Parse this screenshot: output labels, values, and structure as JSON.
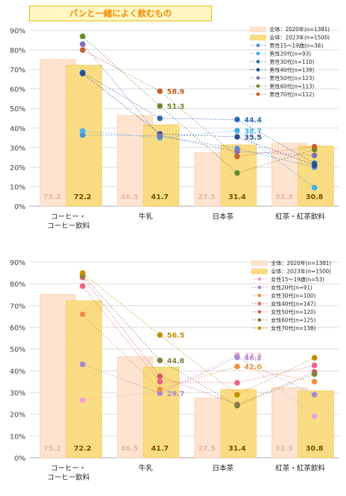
{
  "title": "パンと一緒によく飲むもの",
  "chart_data": [
    {
      "type": "bar",
      "categories": [
        "コーヒー・\nコーヒー飲料",
        "牛乳",
        "日本茶",
        "紅茶・紅茶飲料"
      ],
      "ylim": [
        0,
        90
      ],
      "yticks": [
        "0%",
        "10%",
        "20%",
        "30%",
        "40%",
        "50%",
        "60%",
        "70%",
        "80%",
        "90%"
      ],
      "bar_series": [
        {
          "name": "全体：2020年(n=1381)",
          "values": [
            75.2,
            46.5,
            27.5,
            32.3
          ],
          "labels": [
            "75.2",
            "46.5",
            "27.5",
            "32.3"
          ]
        },
        {
          "name": "全体：2023年(n=1500)",
          "values": [
            72.2,
            41.7,
            31.4,
            30.8
          ],
          "labels": [
            "72.2",
            "41.7",
            "31.4",
            "30.8"
          ]
        }
      ],
      "line_series": [
        {
          "name": "男性15～19歳(n=36)",
          "color": "#4a8fd8",
          "values": [
            36.5,
            36.0,
            29.5,
            20.0
          ]
        },
        {
          "name": "男性20代(n=93)",
          "color": "#41aef0",
          "values": [
            38.5,
            35.0,
            38.7,
            9.5
          ]
        },
        {
          "name": "男性30代(n=110)",
          "color": "#2a6ab8",
          "values": [
            68.5,
            45.0,
            44.4,
            22.0
          ]
        },
        {
          "name": "男性40代(n=139)",
          "color": "#2a4d99",
          "values": [
            68.0,
            37.0,
            35.5,
            21.0
          ]
        },
        {
          "name": "男性50代(n=123)",
          "color": "#8070b8",
          "values": [
            83.0,
            36.0,
            28.0,
            26.0
          ]
        },
        {
          "name": "男性60代(n=113)",
          "color": "#6b8a2a",
          "values": [
            87.0,
            51.3,
            17.0,
            29.0
          ]
        },
        {
          "name": "男性70代(n=112)",
          "color": "#c0652a",
          "values": [
            80.0,
            58.9,
            25.5,
            30.5
          ]
        }
      ],
      "line_labels": [
        {
          "text": "58.9",
          "cat": 1,
          "value": 58.9,
          "color": "#b85a1a"
        },
        {
          "text": "51.3",
          "cat": 1,
          "value": 51.3,
          "color": "#6b8a2a"
        },
        {
          "text": "44.4",
          "cat": 2,
          "value": 44.4,
          "color": "#2a6ab8"
        },
        {
          "text": "38.7",
          "cat": 2,
          "value": 38.7,
          "color": "#41aef0"
        },
        {
          "text": "35.5",
          "cat": 2,
          "value": 35.5,
          "color": "#2a4d99"
        }
      ]
    },
    {
      "type": "bar",
      "categories": [
        "コーヒー・\nコーヒー飲料",
        "牛乳",
        "日本茶",
        "紅茶・紅茶飲料"
      ],
      "ylim": [
        0,
        90
      ],
      "yticks": [
        "0%",
        "10%",
        "20%",
        "30%",
        "40%",
        "50%",
        "60%",
        "70%",
        "80%",
        "90%"
      ],
      "bar_series": [
        {
          "name": "全体：2020年(n=1381)",
          "values": [
            75.2,
            46.5,
            27.5,
            32.3
          ],
          "labels": [
            "75.2",
            "46.5",
            "27.5",
            "32.3"
          ]
        },
        {
          "name": "全体：2023年(n=1500)",
          "values": [
            72.2,
            41.7,
            31.4,
            30.8
          ],
          "labels": [
            "72.2",
            "41.7",
            "31.4",
            "30.8"
          ]
        }
      ],
      "line_series": [
        {
          "name": "女性15～19歳(n=53)",
          "color": "#f0a0d8",
          "values": [
            26.5,
            30.5,
            47.2,
            19.0
          ]
        },
        {
          "name": "女性20代(n=91)",
          "color": "#a88ad0",
          "values": [
            43.0,
            29.7,
            46.2,
            29.0
          ]
        },
        {
          "name": "女性30代(n=100)",
          "color": "#f09040",
          "values": [
            66.0,
            31.5,
            42.0,
            35.0
          ]
        },
        {
          "name": "女性40代(n=147)",
          "color": "#f06080",
          "values": [
            79.0,
            35.0,
            34.5,
            42.5
          ]
        },
        {
          "name": "女性50代(n=120)",
          "color": "#d06060",
          "values": [
            83.0,
            37.5,
            24.5,
            39.5
          ]
        },
        {
          "name": "女性60代(n=125)",
          "color": "#808040",
          "values": [
            84.0,
            44.8,
            24.0,
            38.5
          ]
        },
        {
          "name": "女性70代(n=138)",
          "color": "#c09000",
          "values": [
            85.0,
            56.5,
            29.0,
            46.0
          ]
        }
      ],
      "line_labels": [
        {
          "text": "56.5",
          "cat": 1,
          "value": 56.5,
          "color": "#c09000"
        },
        {
          "text": "44.8",
          "cat": 1,
          "value": 44.8,
          "color": "#808040"
        },
        {
          "text": "29.7",
          "cat": 1,
          "value": 29.7,
          "color": "#a88ad0"
        },
        {
          "text": "47.2",
          "cat": 2,
          "value": 47.2,
          "color": "#f0a0d8"
        },
        {
          "text": "46.2",
          "cat": 2,
          "value": 46.2,
          "color": "#a88ad0"
        },
        {
          "text": "42.0",
          "cat": 2,
          "value": 42.0,
          "color": "#f09040"
        }
      ]
    }
  ]
}
